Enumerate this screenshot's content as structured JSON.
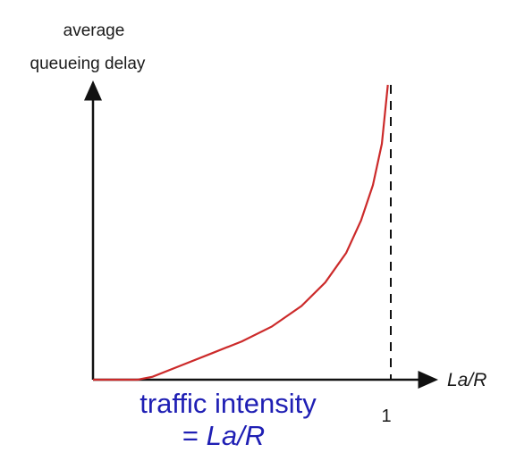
{
  "chart_data": {
    "type": "line",
    "ylabel_lines": [
      "average",
      "queueing delay"
    ],
    "xlabel": "La/R",
    "xticks": [
      {
        "value": 1,
        "label": "1"
      }
    ],
    "xlim": [
      0,
      1.15
    ],
    "ylim": [
      0,
      1.0
    ],
    "asymptote_x": 1,
    "caption_line1": "traffic intensity",
    "caption_prefix": "= ",
    "caption_italic": "La/R",
    "series": [
      {
        "color": "#cc2a2a",
        "x": [
          0,
          0.15,
          0.2,
          0.3,
          0.4,
          0.5,
          0.6,
          0.7,
          0.78,
          0.85,
          0.9,
          0.94,
          0.97,
          0.99
        ],
        "y": [
          0,
          0,
          0.01,
          0.05,
          0.09,
          0.13,
          0.18,
          0.25,
          0.33,
          0.43,
          0.54,
          0.66,
          0.8,
          1.0
        ]
      }
    ],
    "grid": false,
    "legend": "none"
  }
}
